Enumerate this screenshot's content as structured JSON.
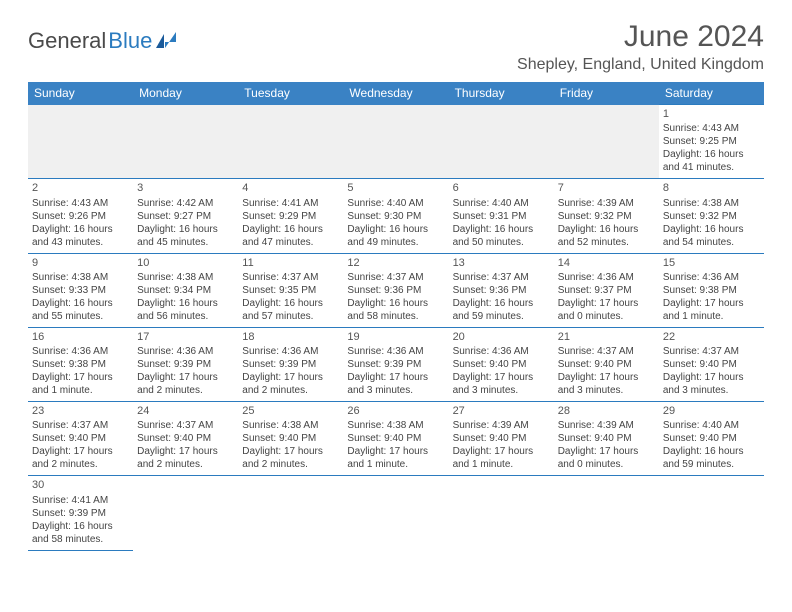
{
  "logo": {
    "text1": "General",
    "text2": "Blue"
  },
  "title": "June 2024",
  "location": "Shepley, England, United Kingdom",
  "colors": {
    "header_bg": "#3a82c4",
    "header_text": "#ffffff",
    "border": "#2b7bbf",
    "blank_bg": "#f0f0f0",
    "text": "#444444",
    "title_text": "#555555"
  },
  "weekdays": [
    "Sunday",
    "Monday",
    "Tuesday",
    "Wednesday",
    "Thursday",
    "Friday",
    "Saturday"
  ],
  "cells": [
    [
      null,
      null,
      null,
      null,
      null,
      null,
      {
        "day": "1",
        "sunrise": "Sunrise: 4:43 AM",
        "sunset": "Sunset: 9:25 PM",
        "daylight": "Daylight: 16 hours and 41 minutes."
      }
    ],
    [
      {
        "day": "2",
        "sunrise": "Sunrise: 4:43 AM",
        "sunset": "Sunset: 9:26 PM",
        "daylight": "Daylight: 16 hours and 43 minutes."
      },
      {
        "day": "3",
        "sunrise": "Sunrise: 4:42 AM",
        "sunset": "Sunset: 9:27 PM",
        "daylight": "Daylight: 16 hours and 45 minutes."
      },
      {
        "day": "4",
        "sunrise": "Sunrise: 4:41 AM",
        "sunset": "Sunset: 9:29 PM",
        "daylight": "Daylight: 16 hours and 47 minutes."
      },
      {
        "day": "5",
        "sunrise": "Sunrise: 4:40 AM",
        "sunset": "Sunset: 9:30 PM",
        "daylight": "Daylight: 16 hours and 49 minutes."
      },
      {
        "day": "6",
        "sunrise": "Sunrise: 4:40 AM",
        "sunset": "Sunset: 9:31 PM",
        "daylight": "Daylight: 16 hours and 50 minutes."
      },
      {
        "day": "7",
        "sunrise": "Sunrise: 4:39 AM",
        "sunset": "Sunset: 9:32 PM",
        "daylight": "Daylight: 16 hours and 52 minutes."
      },
      {
        "day": "8",
        "sunrise": "Sunrise: 4:38 AM",
        "sunset": "Sunset: 9:32 PM",
        "daylight": "Daylight: 16 hours and 54 minutes."
      }
    ],
    [
      {
        "day": "9",
        "sunrise": "Sunrise: 4:38 AM",
        "sunset": "Sunset: 9:33 PM",
        "daylight": "Daylight: 16 hours and 55 minutes."
      },
      {
        "day": "10",
        "sunrise": "Sunrise: 4:38 AM",
        "sunset": "Sunset: 9:34 PM",
        "daylight": "Daylight: 16 hours and 56 minutes."
      },
      {
        "day": "11",
        "sunrise": "Sunrise: 4:37 AM",
        "sunset": "Sunset: 9:35 PM",
        "daylight": "Daylight: 16 hours and 57 minutes."
      },
      {
        "day": "12",
        "sunrise": "Sunrise: 4:37 AM",
        "sunset": "Sunset: 9:36 PM",
        "daylight": "Daylight: 16 hours and 58 minutes."
      },
      {
        "day": "13",
        "sunrise": "Sunrise: 4:37 AM",
        "sunset": "Sunset: 9:36 PM",
        "daylight": "Daylight: 16 hours and 59 minutes."
      },
      {
        "day": "14",
        "sunrise": "Sunrise: 4:36 AM",
        "sunset": "Sunset: 9:37 PM",
        "daylight": "Daylight: 17 hours and 0 minutes."
      },
      {
        "day": "15",
        "sunrise": "Sunrise: 4:36 AM",
        "sunset": "Sunset: 9:38 PM",
        "daylight": "Daylight: 17 hours and 1 minute."
      }
    ],
    [
      {
        "day": "16",
        "sunrise": "Sunrise: 4:36 AM",
        "sunset": "Sunset: 9:38 PM",
        "daylight": "Daylight: 17 hours and 1 minute."
      },
      {
        "day": "17",
        "sunrise": "Sunrise: 4:36 AM",
        "sunset": "Sunset: 9:39 PM",
        "daylight": "Daylight: 17 hours and 2 minutes."
      },
      {
        "day": "18",
        "sunrise": "Sunrise: 4:36 AM",
        "sunset": "Sunset: 9:39 PM",
        "daylight": "Daylight: 17 hours and 2 minutes."
      },
      {
        "day": "19",
        "sunrise": "Sunrise: 4:36 AM",
        "sunset": "Sunset: 9:39 PM",
        "daylight": "Daylight: 17 hours and 3 minutes."
      },
      {
        "day": "20",
        "sunrise": "Sunrise: 4:36 AM",
        "sunset": "Sunset: 9:40 PM",
        "daylight": "Daylight: 17 hours and 3 minutes."
      },
      {
        "day": "21",
        "sunrise": "Sunrise: 4:37 AM",
        "sunset": "Sunset: 9:40 PM",
        "daylight": "Daylight: 17 hours and 3 minutes."
      },
      {
        "day": "22",
        "sunrise": "Sunrise: 4:37 AM",
        "sunset": "Sunset: 9:40 PM",
        "daylight": "Daylight: 17 hours and 3 minutes."
      }
    ],
    [
      {
        "day": "23",
        "sunrise": "Sunrise: 4:37 AM",
        "sunset": "Sunset: 9:40 PM",
        "daylight": "Daylight: 17 hours and 2 minutes."
      },
      {
        "day": "24",
        "sunrise": "Sunrise: 4:37 AM",
        "sunset": "Sunset: 9:40 PM",
        "daylight": "Daylight: 17 hours and 2 minutes."
      },
      {
        "day": "25",
        "sunrise": "Sunrise: 4:38 AM",
        "sunset": "Sunset: 9:40 PM",
        "daylight": "Daylight: 17 hours and 2 minutes."
      },
      {
        "day": "26",
        "sunrise": "Sunrise: 4:38 AM",
        "sunset": "Sunset: 9:40 PM",
        "daylight": "Daylight: 17 hours and 1 minute."
      },
      {
        "day": "27",
        "sunrise": "Sunrise: 4:39 AM",
        "sunset": "Sunset: 9:40 PM",
        "daylight": "Daylight: 17 hours and 1 minute."
      },
      {
        "day": "28",
        "sunrise": "Sunrise: 4:39 AM",
        "sunset": "Sunset: 9:40 PM",
        "daylight": "Daylight: 17 hours and 0 minutes."
      },
      {
        "day": "29",
        "sunrise": "Sunrise: 4:40 AM",
        "sunset": "Sunset: 9:40 PM",
        "daylight": "Daylight: 16 hours and 59 minutes."
      }
    ],
    [
      {
        "day": "30",
        "sunrise": "Sunrise: 4:41 AM",
        "sunset": "Sunset: 9:39 PM",
        "daylight": "Daylight: 16 hours and 58 minutes."
      },
      null,
      null,
      null,
      null,
      null,
      null
    ]
  ]
}
